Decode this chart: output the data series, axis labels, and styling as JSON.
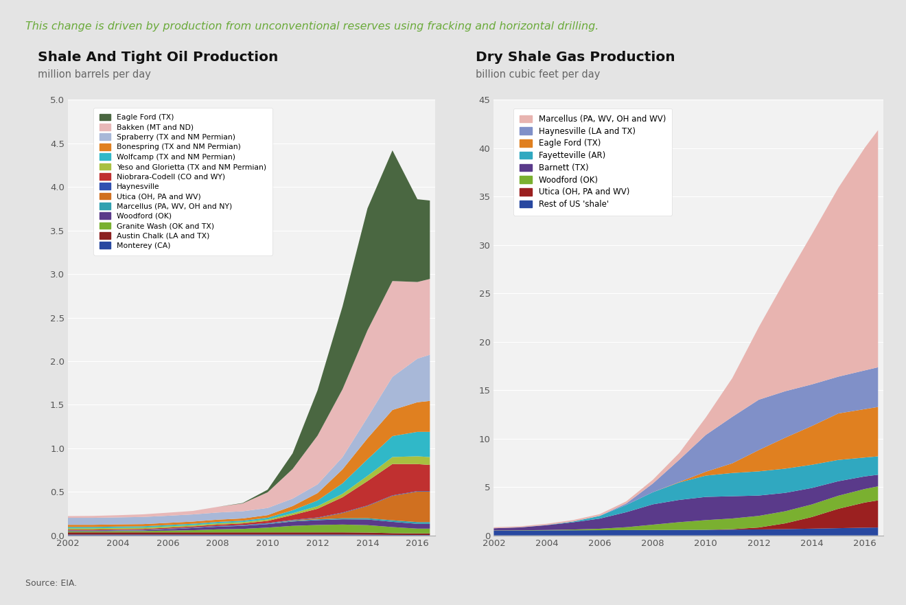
{
  "title_text": "This change is driven by production from unconventional reserves using fracking and horizontal drilling.",
  "title_color": "#6aaa3a",
  "background_color": "#e4e4e4",
  "oil_title": "Shale And Tight Oil Production",
  "oil_subtitle": "million barrels per day",
  "gas_title": "Dry Shale Gas Production",
  "gas_subtitle": "billion cubic feet per day",
  "years": [
    2002,
    2003,
    2004,
    2005,
    2006,
    2007,
    2008,
    2009,
    2010,
    2011,
    2012,
    2013,
    2014,
    2015,
    2016,
    2016.5
  ],
  "oil_series": [
    {
      "name": "Monterey (CA)",
      "color": "#2848a0",
      "values": [
        0.01,
        0.01,
        0.01,
        0.01,
        0.01,
        0.01,
        0.01,
        0.01,
        0.01,
        0.01,
        0.01,
        0.01,
        0.008,
        0.006,
        0.005,
        0.005
      ]
    },
    {
      "name": "Austin Chalk (LA and TX)",
      "color": "#8b2020",
      "values": [
        0.025,
        0.025,
        0.025,
        0.025,
        0.025,
        0.025,
        0.025,
        0.025,
        0.025,
        0.025,
        0.025,
        0.025,
        0.025,
        0.02,
        0.018,
        0.018
      ]
    },
    {
      "name": "Granite Wash (OK and TX)",
      "color": "#7ab030",
      "values": [
        0.01,
        0.01,
        0.015,
        0.015,
        0.02,
        0.025,
        0.035,
        0.04,
        0.055,
        0.075,
        0.085,
        0.09,
        0.085,
        0.07,
        0.055,
        0.055
      ]
    },
    {
      "name": "Woodford (OK)",
      "color": "#5a3a8a",
      "values": [
        0.005,
        0.005,
        0.005,
        0.008,
        0.015,
        0.025,
        0.03,
        0.035,
        0.04,
        0.05,
        0.055,
        0.06,
        0.065,
        0.06,
        0.055,
        0.055
      ]
    },
    {
      "name": "Marcellus (PA, WV, OH and NY)",
      "color": "#30a0b0",
      "values": [
        0.002,
        0.002,
        0.002,
        0.002,
        0.002,
        0.002,
        0.003,
        0.004,
        0.006,
        0.008,
        0.01,
        0.012,
        0.015,
        0.018,
        0.02,
        0.02
      ]
    },
    {
      "name": "Utica (OH, PA and WV)",
      "color": "#d07020",
      "values": [
        0.0,
        0.0,
        0.0,
        0.0,
        0.0,
        0.0,
        0.0,
        0.0,
        0.0,
        0.005,
        0.015,
        0.06,
        0.14,
        0.28,
        0.35,
        0.35
      ]
    },
    {
      "name": "Haynesville",
      "color": "#3050b0",
      "values": [
        0.005,
        0.005,
        0.005,
        0.005,
        0.005,
        0.005,
        0.006,
        0.006,
        0.006,
        0.006,
        0.006,
        0.006,
        0.006,
        0.006,
        0.006,
        0.006
      ]
    },
    {
      "name": "Niobrara-Codell (CO and WY)",
      "color": "#c03030",
      "values": [
        0.01,
        0.01,
        0.01,
        0.01,
        0.012,
        0.012,
        0.015,
        0.018,
        0.025,
        0.055,
        0.1,
        0.175,
        0.28,
        0.36,
        0.31,
        0.3
      ]
    },
    {
      "name": "Yeso and Glorietta (TX and NM Permian)",
      "color": "#a8c040",
      "values": [
        0.015,
        0.015,
        0.015,
        0.015,
        0.015,
        0.015,
        0.015,
        0.015,
        0.016,
        0.02,
        0.03,
        0.04,
        0.06,
        0.08,
        0.09,
        0.09
      ]
    },
    {
      "name": "Wolfcamp (TX and NM Permian)",
      "color": "#30b8c8",
      "values": [
        0.015,
        0.015,
        0.015,
        0.015,
        0.015,
        0.015,
        0.016,
        0.016,
        0.02,
        0.035,
        0.065,
        0.12,
        0.19,
        0.24,
        0.28,
        0.29
      ]
    },
    {
      "name": "Bonespring (TX and NM Permian)",
      "color": "#e08020",
      "values": [
        0.025,
        0.025,
        0.025,
        0.025,
        0.025,
        0.025,
        0.026,
        0.026,
        0.03,
        0.048,
        0.085,
        0.16,
        0.24,
        0.3,
        0.34,
        0.355
      ]
    },
    {
      "name": "Spraberry (TX and NM Permian)",
      "color": "#a8b8d8",
      "values": [
        0.08,
        0.08,
        0.08,
        0.082,
        0.082,
        0.082,
        0.082,
        0.082,
        0.082,
        0.085,
        0.1,
        0.14,
        0.24,
        0.38,
        0.5,
        0.53
      ]
    },
    {
      "name": "Bakken (MT and ND)",
      "color": "#e8b8b8",
      "values": [
        0.02,
        0.022,
        0.025,
        0.03,
        0.035,
        0.04,
        0.065,
        0.09,
        0.18,
        0.34,
        0.56,
        0.78,
        1.0,
        1.1,
        0.88,
        0.87
      ]
    },
    {
      "name": "Eagle Ford (TX)",
      "color": "#4a6741",
      "values": [
        0.0,
        0.0,
        0.0,
        0.0,
        0.0,
        0.0,
        0.0,
        0.005,
        0.03,
        0.18,
        0.52,
        0.95,
        1.4,
        1.5,
        0.95,
        0.9
      ]
    }
  ],
  "gas_series": [
    {
      "name": "Rest of US 'shale'",
      "color": "#2848a0",
      "values": [
        0.5,
        0.5,
        0.52,
        0.53,
        0.54,
        0.55,
        0.56,
        0.57,
        0.58,
        0.6,
        0.62,
        0.65,
        0.7,
        0.75,
        0.8,
        0.82
      ]
    },
    {
      "name": "Utica (OH, PA and WV)",
      "color": "#9b2020",
      "values": [
        0.0,
        0.0,
        0.0,
        0.0,
        0.0,
        0.0,
        0.0,
        0.0,
        0.0,
        0.05,
        0.2,
        0.6,
        1.2,
        2.0,
        2.6,
        2.8
      ]
    },
    {
      "name": "Woodford (OK)",
      "color": "#7ab030",
      "values": [
        0.02,
        0.03,
        0.04,
        0.08,
        0.15,
        0.3,
        0.55,
        0.8,
        1.0,
        1.1,
        1.2,
        1.25,
        1.3,
        1.35,
        1.4,
        1.45
      ]
    },
    {
      "name": "Barnett (TX)",
      "color": "#5a3a8a",
      "values": [
        0.22,
        0.3,
        0.5,
        0.75,
        1.05,
        1.55,
        2.1,
        2.3,
        2.4,
        2.3,
        2.1,
        1.9,
        1.7,
        1.5,
        1.3,
        1.2
      ]
    },
    {
      "name": "Fayetteville (AR)",
      "color": "#30a8c0",
      "values": [
        0.0,
        0.01,
        0.02,
        0.08,
        0.28,
        0.75,
        1.25,
        1.8,
        2.2,
        2.4,
        2.5,
        2.5,
        2.4,
        2.2,
        1.95,
        1.9
      ]
    },
    {
      "name": "Eagle Ford (TX)",
      "color": "#e08020",
      "values": [
        0.0,
        0.0,
        0.0,
        0.0,
        0.0,
        0.0,
        0.0,
        0.05,
        0.4,
        1.0,
        2.2,
        3.2,
        4.0,
        4.8,
        5.0,
        5.1
      ]
    },
    {
      "name": "Haynesville (LA and TX)",
      "color": "#8090c8",
      "values": [
        0.0,
        0.0,
        0.0,
        0.0,
        0.0,
        0.15,
        0.9,
        2.3,
        3.8,
        4.8,
        5.2,
        4.8,
        4.3,
        3.8,
        4.0,
        4.1
      ]
    },
    {
      "name": "Marcellus (PA, WV, OH and WV)",
      "color": "#e8b4b0",
      "values": [
        0.1,
        0.1,
        0.12,
        0.15,
        0.18,
        0.22,
        0.38,
        0.7,
        1.8,
        4.0,
        7.5,
        11.5,
        15.5,
        19.5,
        23.0,
        24.5
      ]
    }
  ],
  "source_text": "Source: EIA.",
  "oil_ylim": [
    0,
    5.0
  ],
  "gas_ylim": [
    0,
    45
  ],
  "oil_yticks": [
    0.0,
    0.5,
    1.0,
    1.5,
    2.0,
    2.5,
    3.0,
    3.5,
    4.0,
    4.5,
    5.0
  ],
  "gas_yticks": [
    0,
    5,
    10,
    15,
    20,
    25,
    30,
    35,
    40,
    45
  ],
  "xticks": [
    2002,
    2004,
    2006,
    2008,
    2010,
    2012,
    2014,
    2016
  ]
}
